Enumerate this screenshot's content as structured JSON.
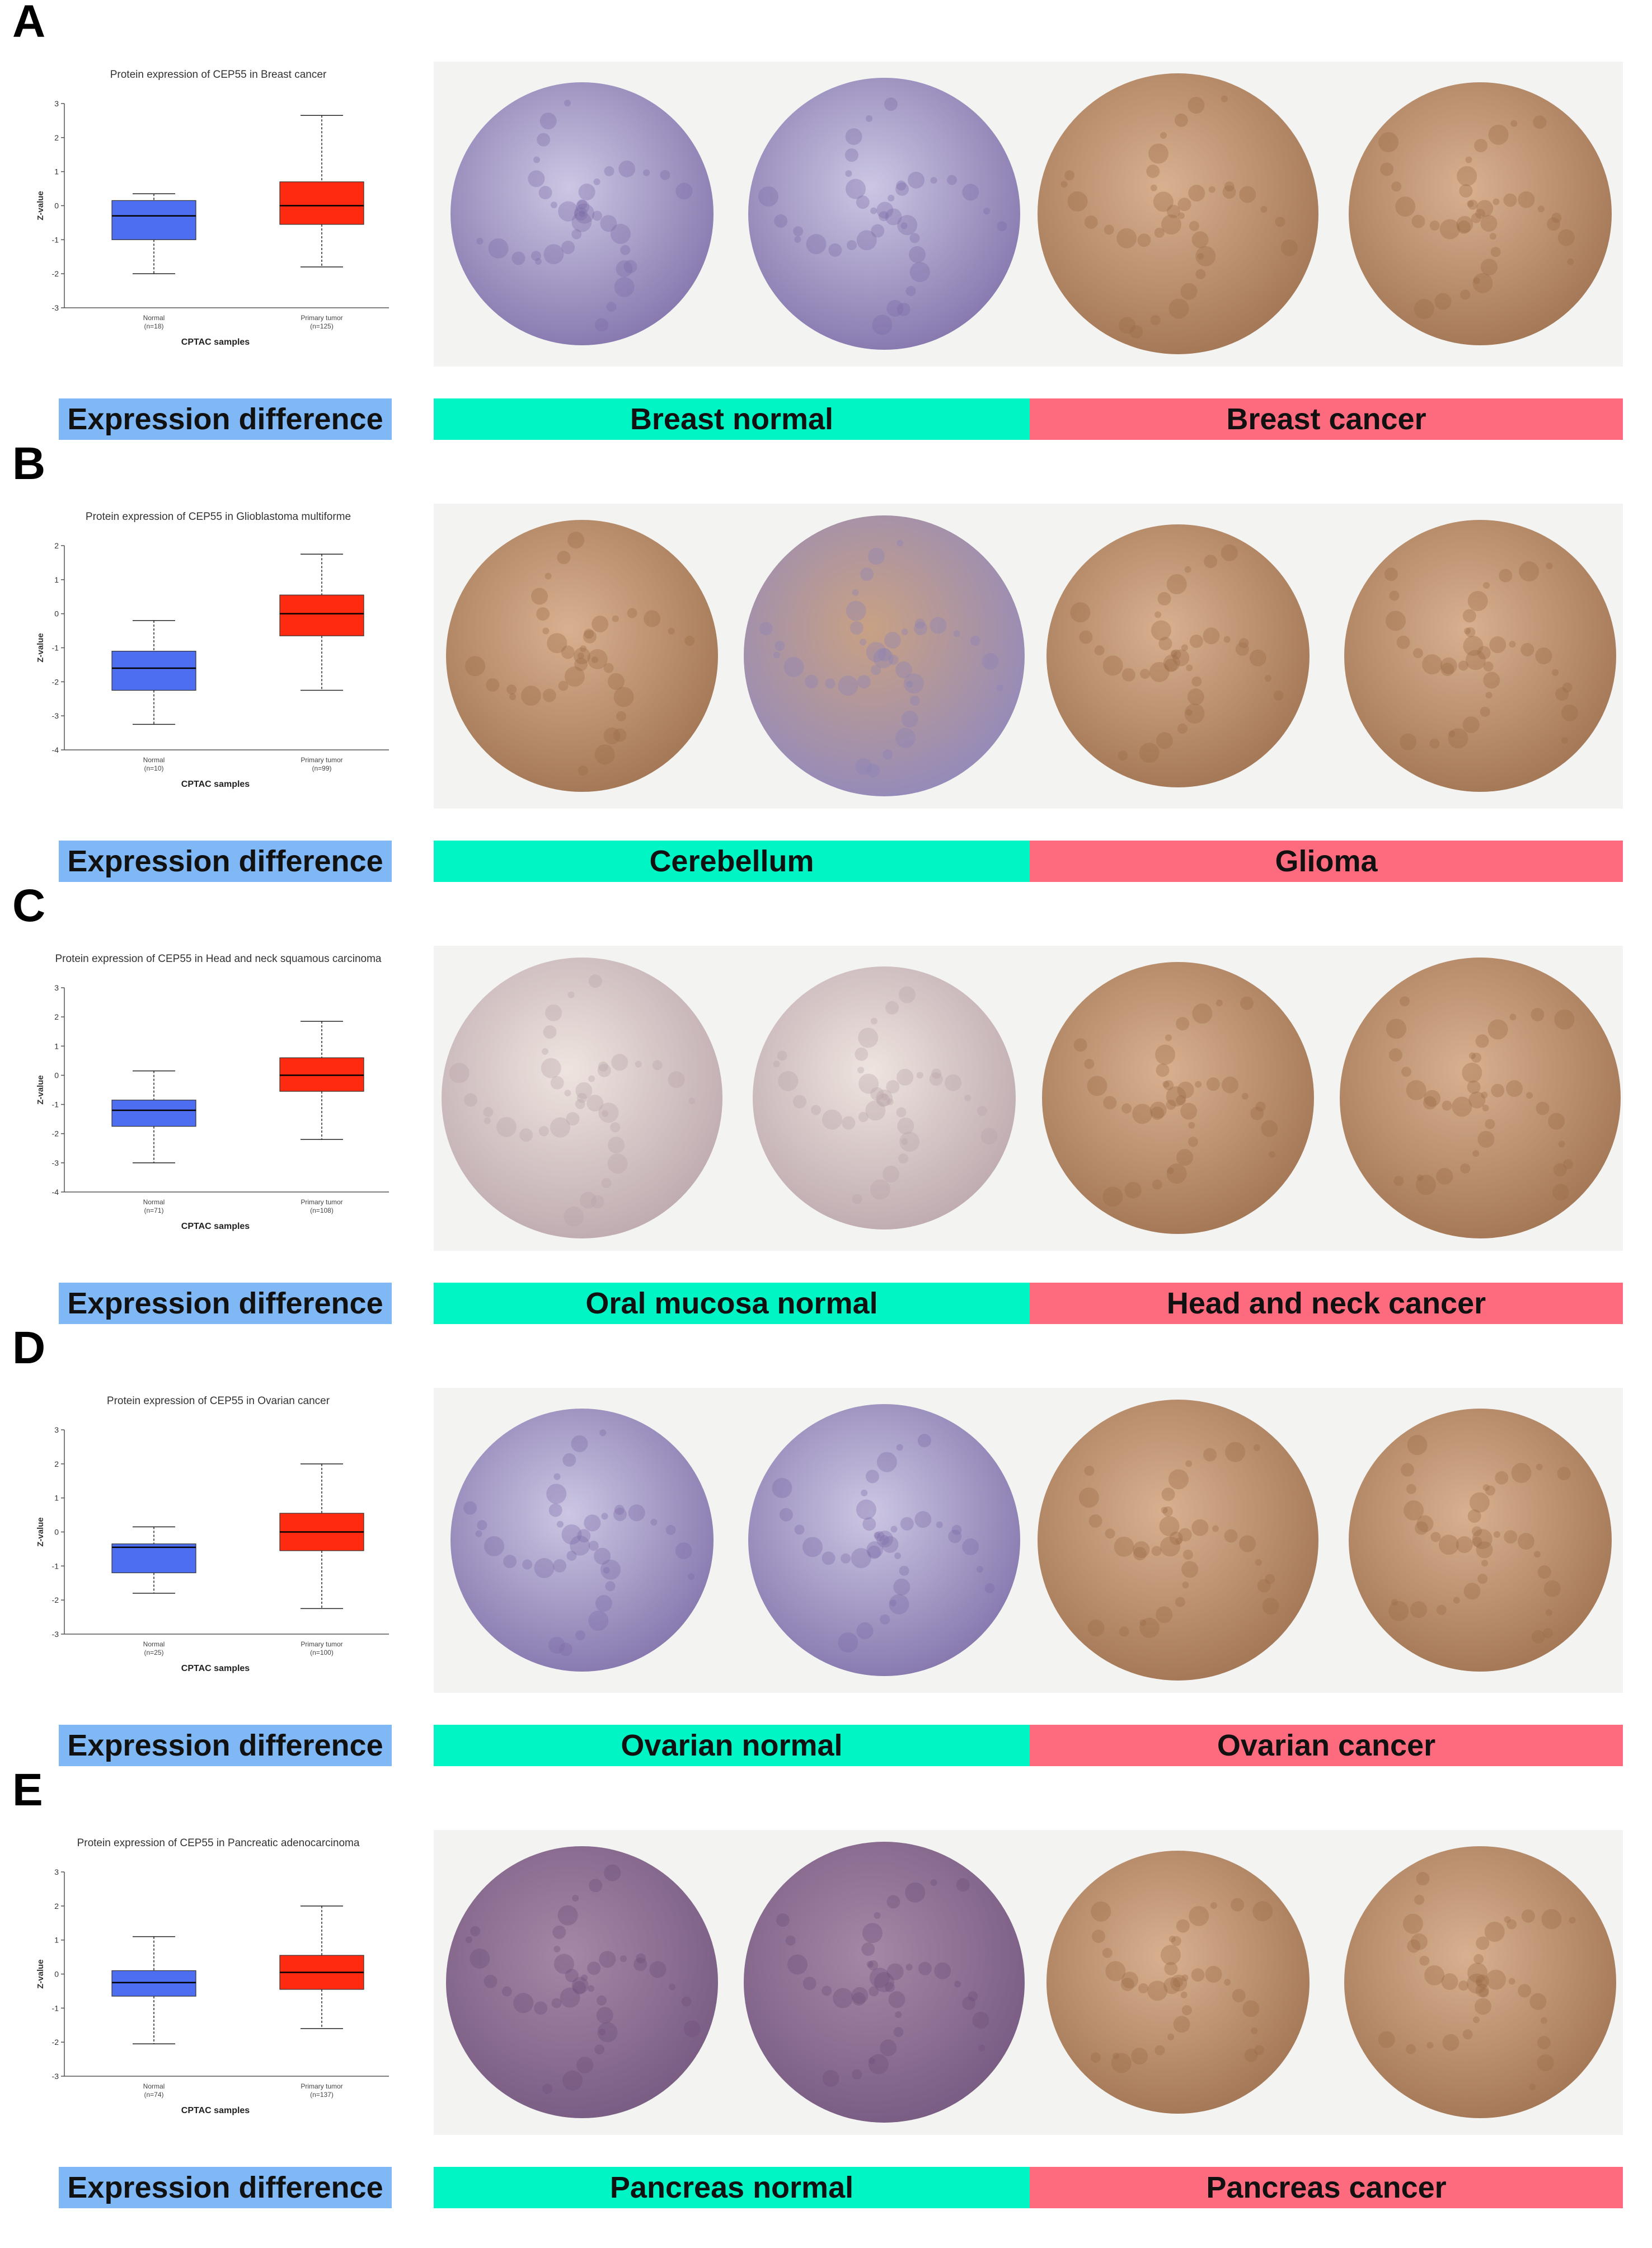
{
  "colors": {
    "normal_box": "#4d6ef0",
    "tumor_box": "#ff2a10",
    "expression_band": "#7fb8f5",
    "normal_band": "#00f5c4",
    "cancer_band": "#ff6b7e",
    "hematoxylin_stain": "#8a7cb4",
    "dab_stain": "#b98a5e"
  },
  "panels": [
    {
      "letter": "A",
      "expression_label": "Expression difference",
      "normal_label": "Breast normal",
      "cancer_label": "Breast cancer",
      "tissue_stain": [
        "blue",
        "blue",
        "brown",
        "brown"
      ]
    },
    {
      "letter": "B",
      "expression_label": "Expression difference",
      "normal_label": "Cerebellum",
      "cancer_label": "Glioma",
      "tissue_stain": [
        "brown",
        "mixed",
        "brown",
        "brown"
      ]
    },
    {
      "letter": "C",
      "expression_label": "Expression difference",
      "normal_label": "Oral mucosa normal",
      "cancer_label": "Head and neck cancer",
      "tissue_stain": [
        "pale",
        "pale",
        "brown",
        "brown"
      ]
    },
    {
      "letter": "D",
      "expression_label": "Expression difference",
      "normal_label": "Ovarian normal",
      "cancer_label": "Ovarian cancer",
      "tissue_stain": [
        "blue",
        "blue",
        "brown",
        "brown"
      ]
    },
    {
      "letter": "E",
      "expression_label": "Expression difference",
      "normal_label": "Pancreas normal",
      "cancer_label": "Pancreas cancer",
      "tissue_stain": [
        "purple",
        "purple",
        "brown",
        "brown"
      ]
    }
  ],
  "chart_data": [
    {
      "type": "box",
      "title": "Protein expression of CEP55 in Breast cancer",
      "xlabel": "CPTAC samples",
      "ylabel": "Z-value",
      "ylim": [
        -3,
        3
      ],
      "yticks": [
        "3",
        "2",
        "1",
        "0",
        "-1",
        "-2",
        "-3"
      ],
      "categories": [
        "Normal",
        "Primary tumor"
      ],
      "counts": [
        "(n=18)",
        "(n=125)"
      ],
      "boxes": [
        {
          "min": -2.0,
          "q1": -1.0,
          "median": -0.3,
          "q3": 0.15,
          "max": 0.35
        },
        {
          "min": -1.8,
          "q1": -0.55,
          "median": 0.0,
          "q3": 0.7,
          "max": 2.65
        }
      ]
    },
    {
      "type": "box",
      "title": "Protein expression of CEP55 in Glioblastoma multiforme",
      "xlabel": "CPTAC samples",
      "ylabel": "Z-value",
      "ylim": [
        -4,
        2
      ],
      "yticks": [
        "2",
        "1",
        "0",
        "-1",
        "-2",
        "-3",
        "-4"
      ],
      "categories": [
        "Normal",
        "Primary tumor"
      ],
      "counts": [
        "(n=10)",
        "(n=99)"
      ],
      "boxes": [
        {
          "min": -3.25,
          "q1": -2.25,
          "median": -1.6,
          "q3": -1.1,
          "max": -0.2
        },
        {
          "min": -2.25,
          "q1": -0.65,
          "median": 0.0,
          "q3": 0.55,
          "max": 1.75
        }
      ]
    },
    {
      "type": "box",
      "title": "Protein expression of CEP55 in Head and neck squamous carcinoma",
      "xlabel": "CPTAC samples",
      "ylabel": "Z-value",
      "ylim": [
        -4,
        3
      ],
      "yticks": [
        "3",
        "2",
        "1",
        "0",
        "-1",
        "-2",
        "-3",
        "-4"
      ],
      "categories": [
        "Normal",
        "Primary tumor"
      ],
      "counts": [
        "(n=71)",
        "(n=108)"
      ],
      "boxes": [
        {
          "min": -3.0,
          "q1": -1.75,
          "median": -1.2,
          "q3": -0.85,
          "max": 0.15
        },
        {
          "min": -2.2,
          "q1": -0.55,
          "median": 0.0,
          "q3": 0.6,
          "max": 1.85
        }
      ]
    },
    {
      "type": "box",
      "title": "Protein expression of CEP55 in Ovarian cancer",
      "xlabel": "CPTAC samples",
      "ylabel": "Z-value",
      "ylim": [
        -3,
        3
      ],
      "yticks": [
        "3",
        "2",
        "1",
        "0",
        "-1",
        "-2",
        "-3"
      ],
      "categories": [
        "Normal",
        "Primary tumor"
      ],
      "counts": [
        "(n=25)",
        "(n=100)"
      ],
      "boxes": [
        {
          "min": -1.8,
          "q1": -1.2,
          "median": -0.45,
          "q3": -0.35,
          "max": 0.15
        },
        {
          "min": -2.25,
          "q1": -0.55,
          "median": 0.0,
          "q3": 0.55,
          "max": 2.0
        }
      ]
    },
    {
      "type": "box",
      "title": "Protein expression of CEP55 in Pancreatic adenocarcinoma",
      "xlabel": "CPTAC samples",
      "ylabel": "Z-value",
      "ylim": [
        -3,
        3
      ],
      "yticks": [
        "3",
        "2",
        "1",
        "0",
        "-1",
        "-2",
        "-3"
      ],
      "categories": [
        "Normal",
        "Primary tumor"
      ],
      "counts": [
        "(n=74)",
        "(n=137)"
      ],
      "boxes": [
        {
          "min": -2.05,
          "q1": -0.65,
          "median": -0.25,
          "q3": 0.1,
          "max": 1.1
        },
        {
          "min": -1.6,
          "q1": -0.45,
          "median": 0.05,
          "q3": 0.55,
          "max": 2.0
        }
      ]
    }
  ]
}
